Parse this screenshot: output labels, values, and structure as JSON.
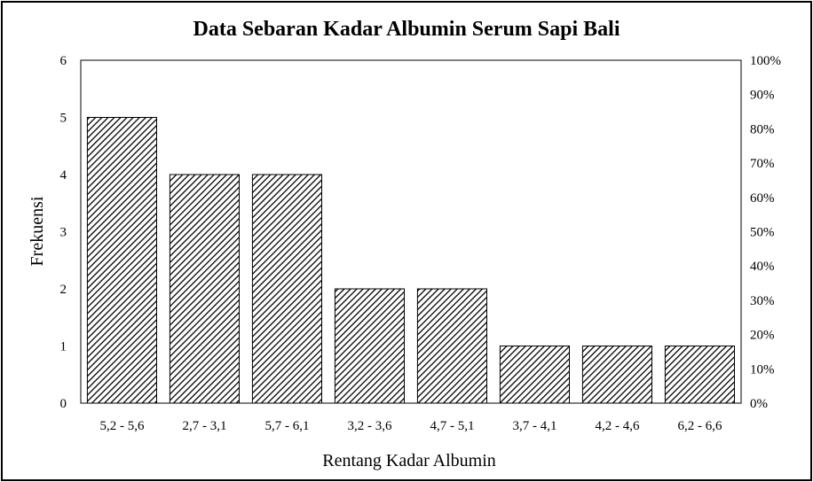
{
  "chart_data": {
    "type": "bar",
    "title": "Data Sebaran Kadar Albumin Serum Sapi Bali",
    "xlabel": "Rentang Kadar Albumin",
    "ylabel": "Frekuensi",
    "categories": [
      "5,2 - 5,6",
      "2,7 - 3,1",
      "5,7 - 6,1",
      "3,2 - 3,6",
      "4,7 - 5,1",
      "3,7 - 4,1",
      "4,2 - 4,6",
      "6,2 - 6,6"
    ],
    "values": [
      5,
      4,
      4,
      2,
      2,
      1,
      1,
      1
    ],
    "ylim": [
      0,
      6
    ],
    "yticks": [
      "0",
      "1",
      "2",
      "3",
      "4",
      "5",
      "6"
    ],
    "y2lim": [
      0,
      100
    ],
    "y2ticks": [
      "0%",
      "10%",
      "20%",
      "30%",
      "40%",
      "50%",
      "60%",
      "70%",
      "80%",
      "90%",
      "100%"
    ],
    "grid": false,
    "legend": "none",
    "bar_fill": "diagonal-hatch",
    "colors": {
      "bar_stroke": "#000000",
      "axis": "#000000",
      "text": "#000000"
    }
  }
}
